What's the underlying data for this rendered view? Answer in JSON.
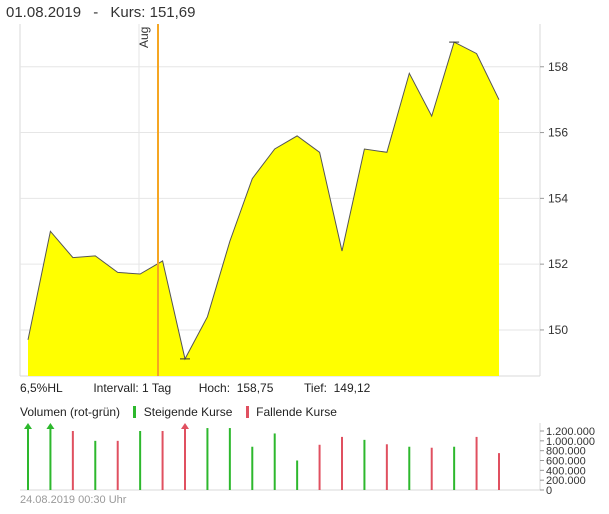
{
  "header": {
    "date": "01.08.2019",
    "separator": "-",
    "price_label": "Kurs: 151,69"
  },
  "info": {
    "hl": "6,5%HL",
    "interval": "Intervall: 1 Tag",
    "high": "Hoch:  158,75",
    "low": "Tief:  149,12"
  },
  "legend": {
    "volume_label": "Volumen (rot-grün)",
    "rising_label": "Steigende Kurse",
    "falling_label": "Fallende Kurse"
  },
  "footer": {
    "timestamp": "24.08.2019 00:30 Uhr"
  },
  "colors": {
    "area_fill": "#ffff00",
    "area_stroke": "#555555",
    "marker_line": "#f5a623",
    "rising": "#2db82d",
    "falling": "#e05060",
    "grid": "#e6e6e6"
  },
  "chart_data": [
    {
      "type": "area",
      "marker": {
        "label": "Aug",
        "index": 7
      },
      "y": [
        149.7,
        153.0,
        152.2,
        152.25,
        151.75,
        151.7,
        152.1,
        149.12,
        150.4,
        152.7,
        154.6,
        155.5,
        155.9,
        155.4,
        152.4,
        155.5,
        155.4,
        157.8,
        156.5,
        158.75,
        158.4,
        157.0
      ],
      "x_index": [
        0,
        1,
        2,
        3,
        4,
        5,
        6,
        7,
        8,
        9,
        10,
        11,
        12,
        13,
        14,
        15,
        16,
        17,
        18,
        19,
        20,
        21
      ],
      "ylim": [
        148.6,
        159.3
      ],
      "yticks": [
        {
          "value": 150,
          "label": "150"
        },
        {
          "value": 152,
          "label": "152"
        },
        {
          "value": 154,
          "label": "154"
        },
        {
          "value": 156,
          "label": "156"
        },
        {
          "value": 158,
          "label": "158"
        }
      ],
      "grid": true
    },
    {
      "type": "bar",
      "ylim": [
        0,
        1200000
      ],
      "yticks": [
        {
          "value": 0,
          "label": "0"
        },
        {
          "value": 200000,
          "label": "200.000"
        },
        {
          "value": 400000,
          "label": "400.000"
        },
        {
          "value": 600000,
          "label": "600.000"
        },
        {
          "value": 800000,
          "label": "800.000"
        },
        {
          "value": 1000000,
          "label": "1.000.000"
        },
        {
          "value": 1200000,
          "label": "1.200.000"
        }
      ],
      "bars": [
        {
          "i": 0,
          "value": 1300000,
          "dir": "up",
          "arrow": true
        },
        {
          "i": 1,
          "value": 1300000,
          "dir": "up",
          "arrow": true
        },
        {
          "i": 2,
          "value": 1200000,
          "dir": "down"
        },
        {
          "i": 3,
          "value": 1000000,
          "dir": "up"
        },
        {
          "i": 4,
          "value": 1000000,
          "dir": "down"
        },
        {
          "i": 5,
          "value": 1200000,
          "dir": "up"
        },
        {
          "i": 6,
          "value": 1200000,
          "dir": "down"
        },
        {
          "i": 7,
          "value": 1300000,
          "dir": "down",
          "arrow": true
        },
        {
          "i": 8,
          "value": 1260000,
          "dir": "up"
        },
        {
          "i": 9,
          "value": 1260000,
          "dir": "up"
        },
        {
          "i": 10,
          "value": 880000,
          "dir": "up"
        },
        {
          "i": 11,
          "value": 1150000,
          "dir": "up"
        },
        {
          "i": 12,
          "value": 600000,
          "dir": "up"
        },
        {
          "i": 13,
          "value": 920000,
          "dir": "down"
        },
        {
          "i": 14,
          "value": 1080000,
          "dir": "down"
        },
        {
          "i": 15,
          "value": 1020000,
          "dir": "up"
        },
        {
          "i": 16,
          "value": 930000,
          "dir": "down"
        },
        {
          "i": 17,
          "value": 880000,
          "dir": "up"
        },
        {
          "i": 18,
          "value": 860000,
          "dir": "down"
        },
        {
          "i": 19,
          "value": 880000,
          "dir": "up"
        },
        {
          "i": 20,
          "value": 1080000,
          "dir": "down"
        },
        {
          "i": 21,
          "value": 750000,
          "dir": "down"
        }
      ]
    }
  ]
}
